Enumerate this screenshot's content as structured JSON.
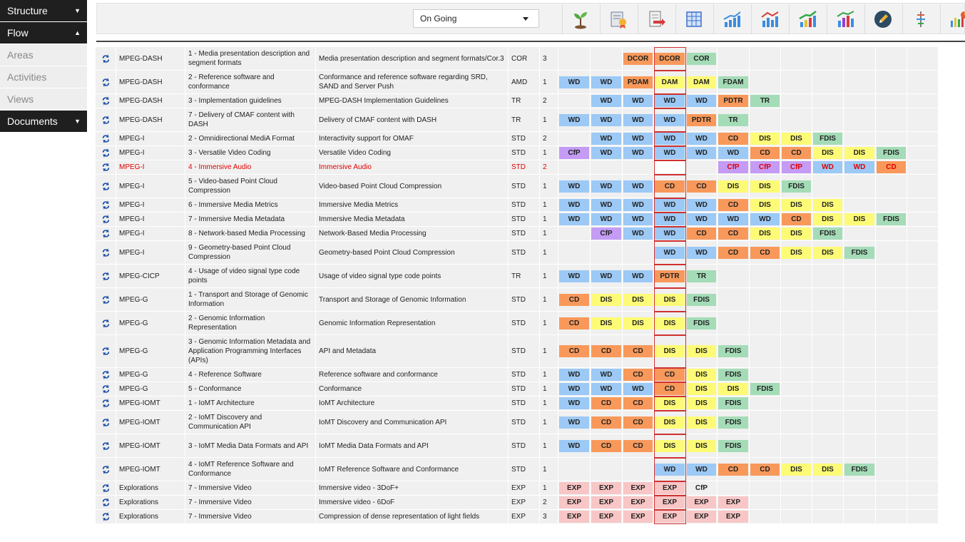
{
  "sidebar": {
    "items": [
      {
        "label": "Structure",
        "style": "dark",
        "arrow": "▼"
      },
      {
        "label": "Flow",
        "style": "dark",
        "arrow": "▲"
      },
      {
        "label": "Areas",
        "style": "light",
        "arrow": ""
      },
      {
        "label": "Activities",
        "style": "light",
        "arrow": ""
      },
      {
        "label": "Views",
        "style": "light",
        "arrow": ""
      },
      {
        "label": "Documents",
        "style": "dark",
        "arrow": "▼"
      }
    ]
  },
  "toolbar": {
    "status_value": "On Going",
    "icons": [
      "sprout-icon",
      "certificate-icon",
      "document-export-icon",
      "table-grid-icon",
      "chart-up-icon",
      "chart-bars-red-icon",
      "chart-growth-icon",
      "chart-bars-multi-icon",
      "pencil-icon",
      "tree-structure-icon",
      "pie-chart-icon"
    ]
  },
  "rows": [
    {
      "std": "MPEG-DASH",
      "part": "1 - Media presentation description and segment formats",
      "title": "Media presentation description and segment formats/Cor.3",
      "type": "COR",
      "ver": "3",
      "h": 33,
      "stages": [
        "",
        "",
        "DCOR",
        "DCOR",
        "COR",
        "",
        "",
        "",
        "",
        "",
        "",
        ""
      ]
    },
    {
      "std": "MPEG-DASH",
      "part": "2 - Reference software and conformance",
      "title": "Conformance and reference software regarding SRD, SAND and Server Push",
      "type": "AMD",
      "ver": "1",
      "h": 33,
      "stages": [
        "WD",
        "WD",
        "PDAM",
        "DAM",
        "DAM",
        "FDAM",
        "",
        "",
        "",
        "",
        "",
        ""
      ]
    },
    {
      "std": "MPEG-DASH",
      "part": "3 - Implementation guidelines",
      "title": "MPEG-DASH Implementation Guidelines",
      "type": "TR",
      "ver": "2",
      "h": 20,
      "stages": [
        "",
        "WD",
        "WD",
        "WD",
        "WD",
        "PDTR",
        "TR",
        "",
        "",
        "",
        "",
        ""
      ]
    },
    {
      "std": "MPEG-DASH",
      "part": "7 - Delivery of CMAF content with DASH",
      "title": "Delivery of CMAF content with DASH",
      "type": "TR",
      "ver": "1",
      "h": 33,
      "stages": [
        "WD",
        "WD",
        "WD",
        "WD",
        "PDTR",
        "TR",
        "",
        "",
        "",
        "",
        "",
        ""
      ]
    },
    {
      "std": "MPEG-I",
      "part": "2 - Omnidirectional MediA Format",
      "title": "Interactivity support for OMAF",
      "type": "STD",
      "ver": "2",
      "h": 20,
      "stages": [
        "",
        "WD",
        "WD",
        "WD",
        "WD",
        "CD",
        "DIS",
        "DIS",
        "FDIS",
        "",
        "",
        ""
      ]
    },
    {
      "std": "MPEG-I",
      "part": "3 - Versatile Video Coding",
      "title": "Versatile Video Coding",
      "type": "STD",
      "ver": "1",
      "h": 20,
      "stages": [
        "CfP",
        "WD",
        "WD",
        "WD",
        "WD",
        "WD",
        "CD",
        "CD",
        "DIS",
        "DIS",
        "FDIS",
        ""
      ]
    },
    {
      "std": "MPEG-I",
      "part": "4 - Immersive Audio",
      "title": "Immersive Audio",
      "type": "STD",
      "ver": "2",
      "h": 20,
      "hl": true,
      "stages": [
        "",
        "",
        "",
        "EMPTY",
        "",
        "CfP",
        "CfP",
        "CfP",
        "WD",
        "WD",
        "CD",
        ""
      ]
    },
    {
      "std": "MPEG-I",
      "part": "5 - Video-based Point Cloud Compression",
      "title": "Video-based Point Cloud Compression",
      "type": "STD",
      "ver": "1",
      "h": 33,
      "stages": [
        "WD",
        "WD",
        "WD",
        "CD",
        "CD",
        "DIS",
        "DIS",
        "FDIS",
        "",
        "",
        "",
        ""
      ]
    },
    {
      "std": "MPEG-I",
      "part": "6 - Immersive Media Metrics",
      "title": "Immersive Media Metrics",
      "type": "STD",
      "ver": "1",
      "h": 20,
      "stages": [
        "WD",
        "WD",
        "WD",
        "WD",
        "WD",
        "CD",
        "DIS",
        "DIS",
        "DIS",
        "",
        "",
        ""
      ]
    },
    {
      "std": "MPEG-I",
      "part": "7 - Immersive Media Metadata",
      "title": "Immersive Media Metadata",
      "type": "STD",
      "ver": "1",
      "h": 20,
      "stages": [
        "WD",
        "WD",
        "WD",
        "WD",
        "WD",
        "WD",
        "WD",
        "CD",
        "DIS",
        "DIS",
        "FDIS",
        ""
      ]
    },
    {
      "std": "MPEG-I",
      "part": "8 - Network-based Media Processing",
      "title": "Network-Based Media Processing",
      "type": "STD",
      "ver": "1",
      "h": 20,
      "stages": [
        "",
        "CfP",
        "WD",
        "WD",
        "CD",
        "CD",
        "DIS",
        "DIS",
        "FDIS",
        "",
        "",
        ""
      ]
    },
    {
      "std": "MPEG-I",
      "part": "9 - Geometry-based Point Cloud Compression",
      "title": "Geometry-based Point Cloud Compression",
      "type": "STD",
      "ver": "1",
      "h": 33,
      "stages": [
        "",
        "",
        "",
        "WD",
        "WD",
        "CD",
        "CD",
        "DIS",
        "DIS",
        "FDIS",
        "",
        ""
      ]
    },
    {
      "std": "MPEG-CICP",
      "part": "4 - Usage of video signal type code points",
      "title": "Usage of video signal type code points",
      "type": "TR",
      "ver": "1",
      "h": 33,
      "stages": [
        "WD",
        "WD",
        "WD",
        "PDTR",
        "TR",
        "",
        "",
        "",
        "",
        "",
        "",
        ""
      ]
    },
    {
      "std": "MPEG-G",
      "part": "1 - Transport and Storage of Genomic Information",
      "title": "Transport and Storage of Genomic Information",
      "type": "STD",
      "ver": "1",
      "h": 33,
      "stages": [
        "CD",
        "DIS",
        "DIS",
        "DIS",
        "FDIS",
        "",
        "",
        "",
        "",
        "",
        "",
        ""
      ]
    },
    {
      "std": "MPEG-G",
      "part": "2 - Genomic Information Representation",
      "title": "Genomic Information Representation",
      "type": "STD",
      "ver": "1",
      "h": 33,
      "stages": [
        "CD",
        "DIS",
        "DIS",
        "DIS",
        "FDIS",
        "",
        "",
        "",
        "",
        "",
        "",
        ""
      ]
    },
    {
      "std": "MPEG-G",
      "part": "3 - Genomic Information Metadata and Application Programming Interfaces (APIs)",
      "title": "API and Metadata",
      "type": "STD",
      "ver": "1",
      "h": 46,
      "stages": [
        "CD",
        "CD",
        "CD",
        "DIS",
        "DIS",
        "FDIS",
        "",
        "",
        "",
        "",
        "",
        ""
      ]
    },
    {
      "std": "MPEG-G",
      "part": "4 - Reference Software",
      "title": "Reference software and conformance",
      "type": "STD",
      "ver": "1",
      "h": 20,
      "stages": [
        "WD",
        "WD",
        "CD",
        "CD",
        "DIS",
        "FDIS",
        "",
        "",
        "",
        "",
        "",
        ""
      ]
    },
    {
      "std": "MPEG-G",
      "part": "5 - Conformance",
      "title": "Conformance",
      "type": "STD",
      "ver": "1",
      "h": 20,
      "stages": [
        "WD",
        "WD",
        "WD",
        "CD",
        "DIS",
        "DIS",
        "FDIS",
        "",
        "",
        "",
        "",
        ""
      ]
    },
    {
      "std": "MPEG-IOMT",
      "part": "1 - IoMT Architecture",
      "title": "IoMT Architecture",
      "type": "STD",
      "ver": "1",
      "h": 20,
      "stages": [
        "WD",
        "CD",
        "CD",
        "DIS",
        "DIS",
        "FDIS",
        "",
        "",
        "",
        "",
        "",
        ""
      ]
    },
    {
      "std": "MPEG-IOMT",
      "part": "2 - IoMT Discovery and Communication API",
      "title": "IoMT Discovery and Communication API",
      "type": "STD",
      "ver": "1",
      "h": 33,
      "stages": [
        "WD",
        "CD",
        "CD",
        "DIS",
        "DIS",
        "FDIS",
        "",
        "",
        "",
        "",
        "",
        ""
      ]
    },
    {
      "std": "MPEG-IOMT",
      "part": "3 - IoMT Media Data Formats and API",
      "title": "IoMT Media Data Formats and API",
      "type": "STD",
      "ver": "1",
      "h": 33,
      "stages": [
        "WD",
        "CD",
        "CD",
        "DIS",
        "DIS",
        "FDIS",
        "",
        "",
        "",
        "",
        "",
        ""
      ]
    },
    {
      "std": "MPEG-IOMT",
      "part": "4 - IoMT Reference Software and Conformance",
      "title": "IoMT Reference Software and Conformance",
      "type": "STD",
      "ver": "1",
      "h": 33,
      "stages": [
        "",
        "",
        "",
        "WD",
        "WD",
        "CD",
        "CD",
        "DIS",
        "DIS",
        "FDIS",
        "",
        ""
      ]
    },
    {
      "std": "Explorations",
      "part": "7 - Immersive Video",
      "title": "Immersive video - 3DoF+",
      "type": "EXP",
      "ver": "1",
      "h": 20,
      "stages": [
        "EXP",
        "EXP",
        "EXP",
        "EXP",
        "CfP-plain",
        "",
        "",
        "",
        "",
        "",
        "",
        ""
      ]
    },
    {
      "std": "Explorations",
      "part": "7 - Immersive Video",
      "title": "Immersive video - 6DoF",
      "type": "EXP",
      "ver": "2",
      "h": 20,
      "stages": [
        "EXP",
        "EXP",
        "EXP",
        "EXP",
        "EXP",
        "EXP",
        "",
        "",
        "",
        "",
        "",
        ""
      ]
    },
    {
      "std": "Explorations",
      "part": "7 - Immersive Video",
      "title": "Compression of dense representation of light fields",
      "type": "EXP",
      "ver": "3",
      "h": 20,
      "stages": [
        "EXP",
        "EXP",
        "EXP",
        "EXP",
        "EXP",
        "EXP",
        "",
        "",
        "",
        "",
        "",
        ""
      ]
    }
  ]
}
